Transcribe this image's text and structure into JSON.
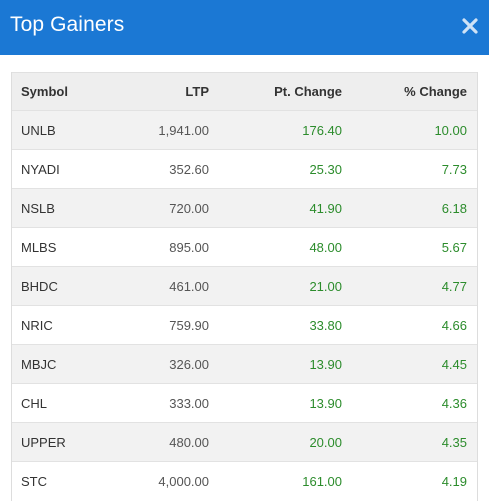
{
  "header": {
    "title": "Top Gainers",
    "close_icon": "close-icon",
    "background": "#1b78d4"
  },
  "table": {
    "columns": [
      "Symbol",
      "LTP",
      "Pt. Change",
      "% Change"
    ],
    "rows": [
      {
        "symbol": "UNLB",
        "ltp": "1,941.00",
        "pt_change": "176.40",
        "pct_change": "10.00"
      },
      {
        "symbol": "NYADI",
        "ltp": "352.60",
        "pt_change": "25.30",
        "pct_change": "7.73"
      },
      {
        "symbol": "NSLB",
        "ltp": "720.00",
        "pt_change": "41.90",
        "pct_change": "6.18"
      },
      {
        "symbol": "MLBS",
        "ltp": "895.00",
        "pt_change": "48.00",
        "pct_change": "5.67"
      },
      {
        "symbol": "BHDC",
        "ltp": "461.00",
        "pt_change": "21.00",
        "pct_change": "4.77"
      },
      {
        "symbol": "NRIC",
        "ltp": "759.90",
        "pt_change": "33.80",
        "pct_change": "4.66"
      },
      {
        "symbol": "MBJC",
        "ltp": "326.00",
        "pt_change": "13.90",
        "pct_change": "4.45"
      },
      {
        "symbol": "CHL",
        "ltp": "333.00",
        "pt_change": "13.90",
        "pct_change": "4.36"
      },
      {
        "symbol": "UPPER",
        "ltp": "480.00",
        "pt_change": "20.00",
        "pct_change": "4.35"
      },
      {
        "symbol": "STC",
        "ltp": "4,000.00",
        "pt_change": "161.00",
        "pct_change": "4.19"
      }
    ],
    "positive_color": "#2c8c2c"
  }
}
